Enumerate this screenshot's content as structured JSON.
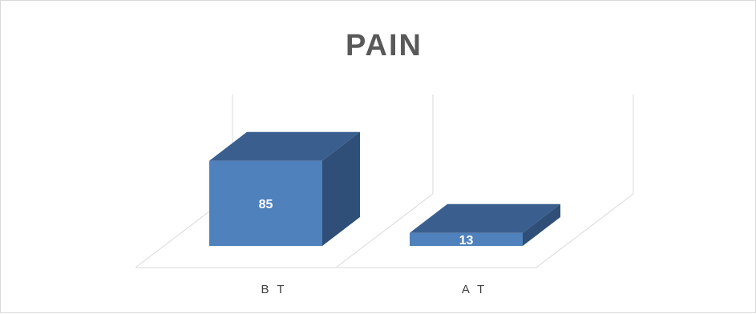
{
  "chart_data": {
    "type": "bar",
    "title": "PAIN",
    "categories": [
      "BT",
      "AT"
    ],
    "values": [
      85,
      13
    ],
    "xlabel": "",
    "ylabel": "",
    "ylim": [
      0,
      100
    ],
    "grid": false,
    "legend": "none",
    "data_labels": true,
    "style": "3d-column"
  },
  "colors": {
    "bar_front": "#4f81bd",
    "bar_top": "#3a5f8f",
    "bar_side": "#2f4f78",
    "grid": "#d9d9d9",
    "title": "#595959"
  }
}
